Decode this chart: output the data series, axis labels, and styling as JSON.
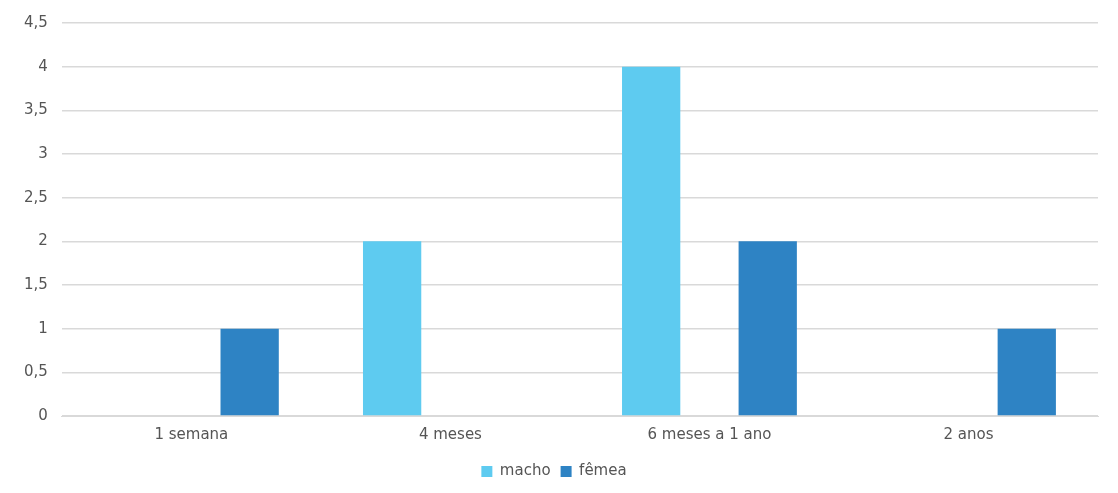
{
  "chart_data": {
    "type": "bar",
    "categories": [
      "1 semana",
      "4 meses",
      "6 meses a 1 ano",
      "2 anos"
    ],
    "series": [
      {
        "name": "macho",
        "color": "#5ecbf0",
        "values": [
          0,
          2,
          4,
          0
        ]
      },
      {
        "name": "fêmea",
        "color": "#2e83c4",
        "values": [
          1,
          0,
          2,
          1
        ]
      }
    ],
    "ylim": [
      0,
      4.5
    ],
    "yticks": [
      0,
      {
        "value": 0.5,
        "label": "0,5"
      },
      1,
      {
        "value": 1.5,
        "label": "1,5"
      },
      2,
      {
        "value": 2.5,
        "label": "2,5"
      },
      3,
      {
        "value": 3.5,
        "label": "3,5"
      },
      4,
      {
        "value": 4.5,
        "label": "4,5"
      }
    ],
    "grid": "y",
    "legend": "bottom"
  }
}
